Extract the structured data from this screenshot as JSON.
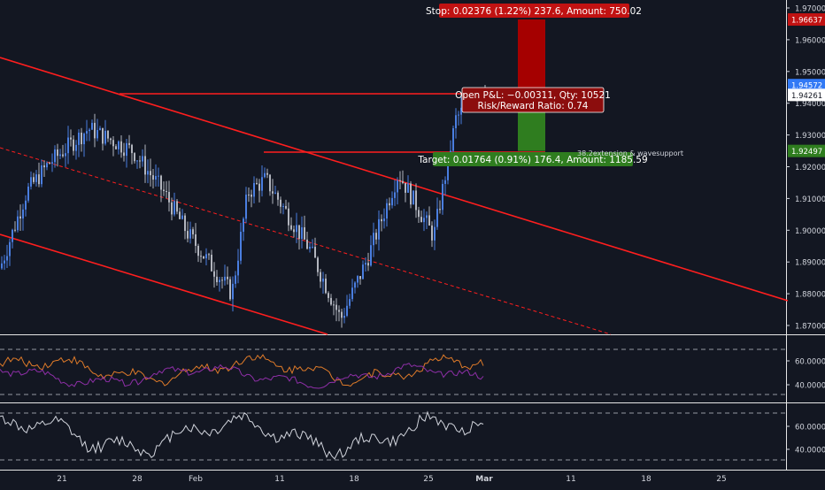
{
  "colors": {
    "background": "#131722",
    "candle_up": "#4a7ee0",
    "candle_down": "#b2b5be",
    "trendline": "#ff1e1e",
    "stop_zone": "#a50000",
    "target_zone": "#2f7d1f",
    "axis_text": "#d1d4dc",
    "rsi_line_1": "#e07b29",
    "rsi_line_2": "#8f2fa8",
    "stoch_line": "#d1d4dc",
    "current_price_badge": "#3179f5",
    "stop_badge": "#c11212",
    "target_badge": "#2f7d1f"
  },
  "price_axis": {
    "ticks": [
      "1.97000",
      "1.96000",
      "1.95000",
      "1.94000",
      "1.93000",
      "1.92000",
      "1.91000",
      "1.90000",
      "1.89000",
      "1.88000",
      "1.87000"
    ],
    "badges": [
      {
        "label": "1.96637",
        "value": 1.96637,
        "kind": "stop"
      },
      {
        "label": "1.94572",
        "value": 1.94572,
        "kind": "current"
      },
      {
        "label": "1.94261",
        "value": 1.94261,
        "kind": "entry"
      },
      {
        "label": "1.92497",
        "value": 1.92497,
        "kind": "target"
      }
    ]
  },
  "time_axis": {
    "labels": [
      "21",
      "28",
      "Feb",
      "11",
      "18",
      "25",
      "Mar",
      "11",
      "18",
      "25"
    ]
  },
  "indicators": {
    "rsi": {
      "ticks": [
        "60.0000",
        "40.0000"
      ]
    },
    "stoch": {
      "ticks": [
        "60.0000",
        "40.0000"
      ]
    }
  },
  "position": {
    "stop_label": "Stop: 0.02376 (1.22%) 237.6, Amount: 750.02",
    "pnl_label": "Open P&L: −0.00311, Qty: 10521",
    "rr_label": "Risk/Reward Ratio: 0.74",
    "target_label": "Target: 0.01764 (0.91%) 176.4, Amount: 1185.59"
  },
  "annotation": "38.2extension & wavesupport",
  "chart_data": {
    "type": "line",
    "instrument_note": "",
    "ylim": [
      1.866,
      1.973
    ],
    "close_series_sample": [
      {
        "x": "Jan 14",
        "y": 1.888
      },
      {
        "x": "Jan 18",
        "y": 1.912
      },
      {
        "x": "Jan 21",
        "y": 1.921
      },
      {
        "x": "Jan 25",
        "y": 1.932
      },
      {
        "x": "Jan 28",
        "y": 1.925
      },
      {
        "x": "Jan 31",
        "y": 1.912
      },
      {
        "x": "Feb 4",
        "y": 1.899
      },
      {
        "x": "Feb 7",
        "y": 1.88
      },
      {
        "x": "Feb 8",
        "y": 1.912
      },
      {
        "x": "Feb 11",
        "y": 1.916
      },
      {
        "x": "Feb 13",
        "y": 1.894
      },
      {
        "x": "Feb 17",
        "y": 1.872
      },
      {
        "x": "Feb 19",
        "y": 1.891
      },
      {
        "x": "Feb 22",
        "y": 1.918
      },
      {
        "x": "Feb 25",
        "y": 1.898
      },
      {
        "x": "Feb 27",
        "y": 1.935
      },
      {
        "x": "Mar 1",
        "y": 1.9457
      }
    ]
  }
}
